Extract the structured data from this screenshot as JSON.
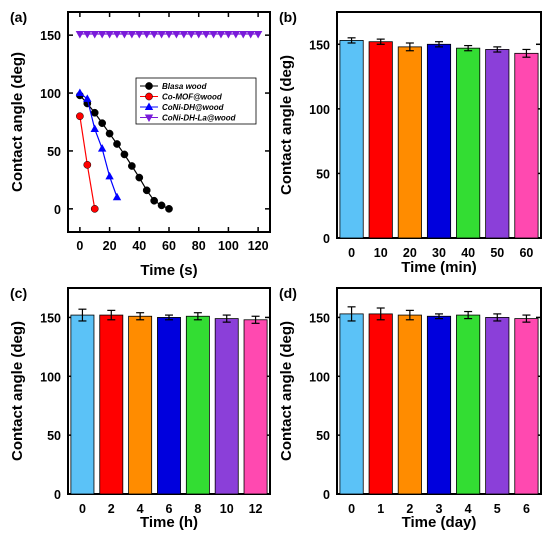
{
  "chart_data": [
    {
      "panel": "(a)",
      "type": "line",
      "xlabel": "Time (s)",
      "ylabel": "Contact angle (deg)",
      "xlim": [
        -8,
        128
      ],
      "ylim": [
        -20,
        170
      ],
      "xticks": [
        "0",
        "20",
        "40",
        "60",
        "80",
        "100",
        "120"
      ],
      "yticks": [
        "0",
        "50",
        "100",
        "150"
      ],
      "legend_position": "middle-right",
      "series": [
        {
          "name": "Blasa wood",
          "color": "#000000",
          "marker": "circle",
          "x": [
            0,
            5,
            10,
            15,
            20,
            25,
            30,
            35,
            40,
            45,
            50,
            55,
            60
          ],
          "y": [
            98,
            91,
            83,
            74,
            65,
            56,
            47,
            37,
            27,
            16,
            7,
            3,
            0
          ]
        },
        {
          "name": "Co-MOF@wood",
          "color": "#ff0000",
          "marker": "circle",
          "x": [
            0,
            5,
            10
          ],
          "y": [
            80,
            38,
            0
          ]
        },
        {
          "name": "CoNi-DH@wood",
          "color": "#0000ff",
          "marker": "triangle-up",
          "x": [
            0,
            5,
            10,
            15,
            20,
            25
          ],
          "y": [
            100,
            95,
            69,
            52,
            28,
            10
          ]
        },
        {
          "name": "CoNi-DH-La@wood",
          "color": "#7a1bd9",
          "marker": "triangle-down",
          "x": [
            0,
            5,
            10,
            15,
            20,
            25,
            30,
            35,
            40,
            45,
            50,
            55,
            60,
            65,
            70,
            75,
            80,
            85,
            90,
            95,
            100,
            105,
            110,
            115,
            120
          ],
          "y": [
            151,
            151,
            151,
            151,
            151,
            151,
            151,
            151,
            151,
            151,
            151,
            151,
            151,
            151,
            151,
            151,
            151,
            151,
            151,
            151,
            151,
            151,
            151,
            151,
            151
          ]
        }
      ]
    },
    {
      "panel": "(b)",
      "type": "bar",
      "xlabel": "Time (min)",
      "ylabel": "Contact angle (deg)",
      "ylim": [
        0,
        175
      ],
      "yticks": [
        "0",
        "50",
        "100",
        "150"
      ],
      "categories": [
        "0",
        "10",
        "20",
        "30",
        "40",
        "50",
        "60"
      ],
      "values": [
        153,
        152,
        148,
        150,
        147,
        146,
        143
      ],
      "errors": [
        2,
        2,
        3,
        2,
        2,
        2,
        3
      ],
      "colors": [
        "#5bc2f7",
        "#ff0000",
        "#ff8c00",
        "#0000dd",
        "#33dd33",
        "#8b3fd9",
        "#ff49b0"
      ]
    },
    {
      "panel": "(c)",
      "type": "bar",
      "xlabel": "Time (h)",
      "ylabel": "Contact angle (deg)",
      "ylim": [
        0,
        175
      ],
      "yticks": [
        "0",
        "50",
        "100",
        "150"
      ],
      "categories": [
        "0",
        "2",
        "4",
        "6",
        "8",
        "10",
        "12"
      ],
      "values": [
        152,
        152,
        151,
        150,
        151,
        149,
        148
      ],
      "errors": [
        5,
        4,
        3,
        2,
        3,
        3,
        3
      ],
      "colors": [
        "#5bc2f7",
        "#ff0000",
        "#ff8c00",
        "#0000dd",
        "#33dd33",
        "#8b3fd9",
        "#ff49b0"
      ]
    },
    {
      "panel": "(d)",
      "type": "bar",
      "xlabel": "Time (day)",
      "ylabel": "Contact angle (deg)",
      "ylim": [
        0,
        175
      ],
      "yticks": [
        "0",
        "50",
        "100",
        "150"
      ],
      "categories": [
        "0",
        "1",
        "2",
        "3",
        "4",
        "5",
        "6"
      ],
      "values": [
        153,
        153,
        152,
        151,
        152,
        150,
        149
      ],
      "errors": [
        6,
        5,
        4,
        2,
        3,
        3,
        3
      ],
      "colors": [
        "#5bc2f7",
        "#ff0000",
        "#ff8c00",
        "#0000dd",
        "#33dd33",
        "#8b3fd9",
        "#ff49b0"
      ]
    }
  ]
}
